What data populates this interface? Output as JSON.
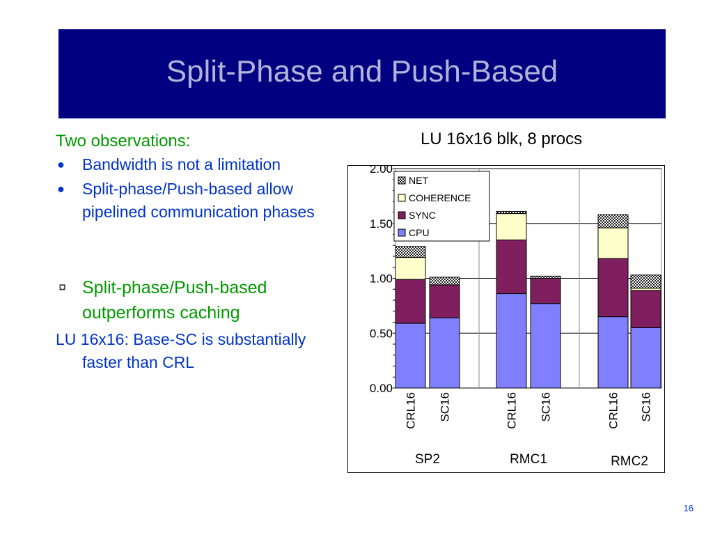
{
  "slide": {
    "title": "Split-Phase and Push-Based",
    "page_number": "16"
  },
  "left": {
    "heading": "Two observations:",
    "bullets": [
      "Bandwidth is not a limitation",
      "Split-phase/Push-based allow pipelined communication phases"
    ],
    "highlight": "Split-phase/Push-based outperforms caching",
    "conclusion": "LU 16x16: Base-SC is substantially faster than CRL"
  },
  "colors": {
    "title_bg": "#000080",
    "title_text": "#b3b3d9",
    "green": "#009900",
    "blue": "#0033cc",
    "CPU": "#8080ff",
    "SYNC": "#7f1f5f",
    "COHERENCE": "#ffffcc",
    "NET": "#222222"
  },
  "chart_data": {
    "type": "bar",
    "stacked": true,
    "title": "LU 16x16 blk, 8 procs",
    "categories": [
      "CRL16",
      "SC16",
      "CRL16",
      "SC16",
      "CRL16",
      "SC16"
    ],
    "groups": [
      {
        "name": "SP2",
        "categories": [
          0,
          1
        ]
      },
      {
        "name": "RMC1",
        "categories": [
          2,
          3
        ]
      },
      {
        "name": "RMC2",
        "categories": [
          4,
          5
        ]
      }
    ],
    "series": [
      {
        "name": "CPU",
        "values": [
          0.59,
          0.64,
          0.86,
          0.77,
          0.65,
          0.55
        ]
      },
      {
        "name": "SYNC",
        "values": [
          0.4,
          0.3,
          0.49,
          0.23,
          0.53,
          0.34
        ]
      },
      {
        "name": "COHERENCE",
        "values": [
          0.2,
          0.0,
          0.24,
          0.0,
          0.28,
          0.02
        ]
      },
      {
        "name": "NET",
        "values": [
          0.1,
          0.07,
          0.02,
          0.02,
          0.12,
          0.12
        ]
      }
    ],
    "legend": [
      "NET",
      "COHERENCE",
      "SYNC",
      "CPU"
    ],
    "legend_position": "top-left",
    "ylim": [
      0,
      2.0
    ],
    "yticks": [
      "0.00",
      "0.50",
      "1.00",
      "1.50",
      "2.00"
    ],
    "ytick_values": [
      0,
      0.5,
      1.0,
      1.5,
      2.0
    ],
    "grid": true
  }
}
